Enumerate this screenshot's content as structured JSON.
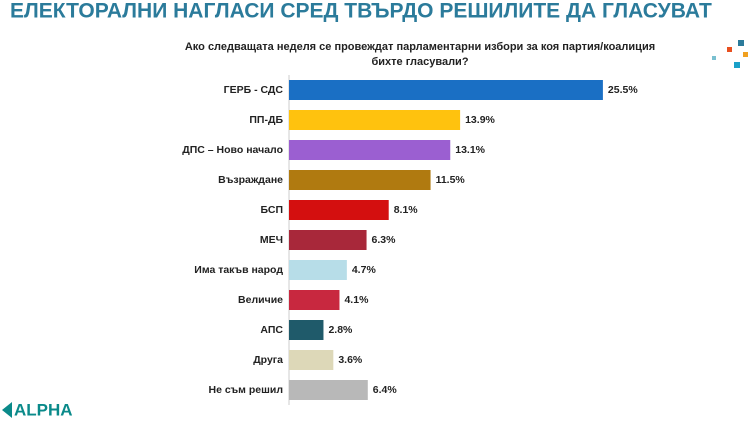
{
  "chart_data": {
    "type": "bar",
    "orientation": "horizontal",
    "title": "ЕЛЕКТОРАЛНИ НАГЛАСИ СРЕД ТВЪРДО РЕШИЛИТЕ ДА ГЛАСУВАТ",
    "subtitle": [
      "Ако следващата неделя се провеждат парламентарни избори за коя партия/коалиция",
      "бихте гласували?"
    ],
    "categories": [
      "ГЕРБ - СДС",
      "ПП-ДБ",
      "ДПС – Ново начало",
      "Възраждане",
      "БСП",
      "МЕЧ",
      "Има такъв народ",
      "Величие",
      "АПС",
      "Друга",
      "Не съм решил"
    ],
    "values": [
      25.5,
      13.9,
      13.1,
      11.5,
      8.1,
      6.3,
      4.7,
      4.1,
      2.8,
      3.6,
      6.4
    ],
    "value_labels": [
      "25.5%",
      "13.9%",
      "13.1%",
      "11.5%",
      "8.1%",
      "6.3%",
      "4.7%",
      "4.1%",
      "2.8%",
      "3.6%",
      "6.4%"
    ],
    "colors": [
      "#1a6fc4",
      "#ffc20e",
      "#9b5fd1",
      "#b07a10",
      "#d40f0f",
      "#a8283a",
      "#b7dde8",
      "#c8283f",
      "#1f5a6a",
      "#ddd8b8",
      "#b8b8b8"
    ],
    "logo": "ALPHA"
  }
}
